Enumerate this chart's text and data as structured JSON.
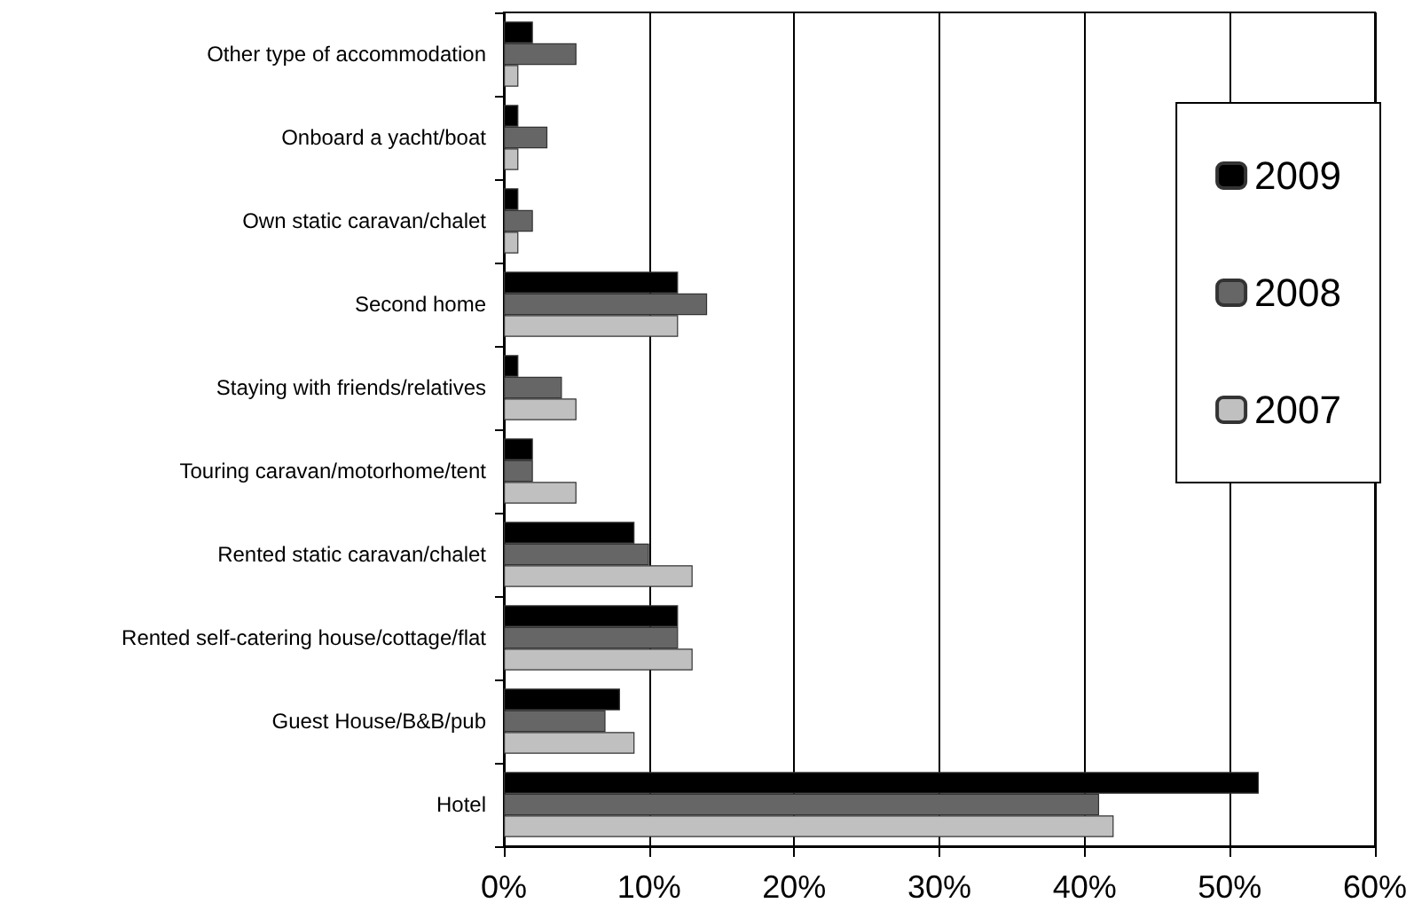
{
  "chart_data": {
    "type": "bar",
    "orientation": "horizontal",
    "categories": [
      "Other type of accommodation",
      "Onboard a yacht/boat",
      "Own static caravan/chalet",
      "Second home",
      "Staying with friends/relatives",
      "Touring caravan/motorhome/tent",
      "Rented static caravan/chalet",
      "Rented self-catering house/cottage/flat",
      "Guest House/B&B/pub",
      "Hotel"
    ],
    "series": [
      {
        "name": "2009",
        "color": "#000000",
        "values": [
          2,
          1,
          1,
          12,
          1,
          2,
          9,
          12,
          8,
          52
        ]
      },
      {
        "name": "2008",
        "color": "#666666",
        "values": [
          5,
          3,
          2,
          14,
          4,
          2,
          10,
          12,
          7,
          41
        ]
      },
      {
        "name": "2007",
        "color": "#c0c0c0",
        "values": [
          1,
          1,
          1,
          12,
          5,
          5,
          13,
          13,
          9,
          42
        ]
      }
    ],
    "xlim": [
      0,
      60
    ],
    "xticks": [
      {
        "value": 0,
        "label": "0%"
      },
      {
        "value": 10,
        "label": "10%"
      },
      {
        "value": 20,
        "label": "20%"
      },
      {
        "value": 30,
        "label": "30%"
      },
      {
        "value": 40,
        "label": "40%"
      },
      {
        "value": 50,
        "label": "50%"
      },
      {
        "value": 60,
        "label": "60%"
      }
    ],
    "grid": "x",
    "legend": "top right"
  }
}
